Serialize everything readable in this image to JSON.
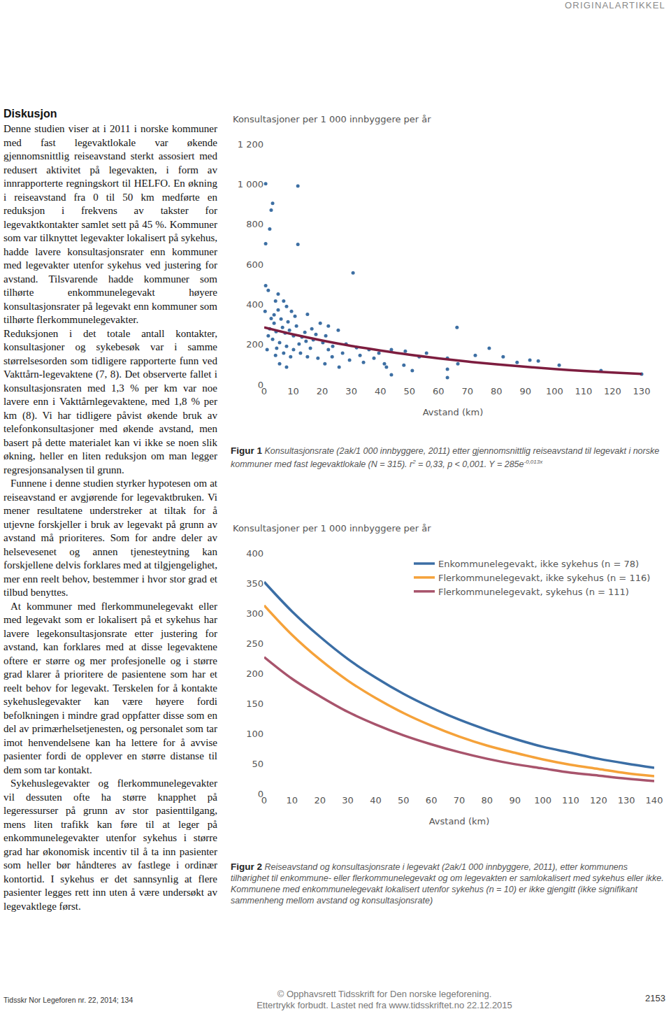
{
  "header": "ORIGINALARTIKKEL",
  "article": {
    "heading": "Diskusjon",
    "paragraphs": [
      "Denne studien viser at i 2011 i norske kommuner med fast legevaktlokale var økende gjennomsnittlig reiseavstand sterkt assosiert med redusert aktivitet på legevakten, i form av innrapporterte regningskort til HELFO. En økning i reiseavstand fra 0 til 50 km medførte en reduksjon i frekvens av takster for legevaktkontakter samlet sett på 45 %. Kommuner som var tilknyttet legevakter lokalisert på sykehus, hadde lavere konsultasjonsrater enn kommuner med legevakter utenfor sykehus ved justering for avstand. Tilsvarende hadde kommuner som tilhørte enkommunelegevakt høyere konsultasjonsrater på legevakt enn kommuner som tilhørte flerkommunelegevakter.",
      "Reduksjonen i det totale antall kontakter, konsultasjoner og sykebesøk var i samme størrelsesorden som tidligere rapporterte funn ved Vakttårn-legevaktene (7, 8). Det observerte fallet i konsultasjonsraten med 1,3 % per km var noe lavere enn i Vakttårnlegevaktene, med 1,8 % per km (8). Vi har tidligere påvist økende bruk av telefonkonsultasjoner med økende avstand, men basert på dette materialet kan vi ikke se noen slik økning, heller en liten reduksjon om man legger regresjonsanalysen til grunn.",
      "Funnene i denne studien styrker hypotesen om at reiseavstand er avgjørende for legevaktbruken. Vi mener resultatene understreker at tiltak for å utjevne forskjeller i bruk av legevakt på grunn av avstand må prioriteres. Som for andre deler av helsevesenet og annen tjenesteytning kan forskjellene delvis forklares med at tilgjengelighet, mer enn reelt behov, bestemmer i hvor stor grad et tilbud benyttes.",
      "At kommuner med flerkommunelegevakt eller med legevakt som er lokalisert på et sykehus har lavere legekonsultasjonsrate etter justering for avstand, kan forklares med at disse legevaktene oftere er større og mer profesjonelle og i større grad klarer å prioritere de pasientene som har et reelt behov for legevakt. Terskelen for å kontakte sykehuslegevakter kan være høyere fordi befolkningen i mindre grad oppfatter disse som en del av primærhelsetjenesten, og personalet som tar imot henvendelsene kan ha lettere for å avvise pasienter fordi de opplever en større distanse til dem som tar kontakt.",
      "Sykehuslegevakter og flerkommunelegevakter vil dessuten ofte ha større knapphet på legeressurser på grunn av stor pasienttilgang, mens liten trafikk kan føre til at leger på enkommunelegevakter utenfor sykehus i større grad har økonomisk incentiv til å ta inn pasienter som heller bør håndteres av fastlege i ordinær kontortid. I sykehus er det sannsynlig at flere pasienter legges rett inn uten å være undersøkt av legevaktlege først."
    ]
  },
  "chart_data": [
    {
      "type": "scatter",
      "ylabel": "Konsultasjoner per 1 000 innbyggere per år",
      "xlabel": "Avstand (km)",
      "xlim": [
        0,
        130
      ],
      "ylim": [
        0,
        1200
      ],
      "xticks": [
        0,
        10,
        20,
        30,
        40,
        50,
        60,
        70,
        80,
        90,
        100,
        110,
        120,
        130
      ],
      "yticks": [
        0,
        200,
        400,
        600,
        800,
        {
          "value": 1000,
          "label": "1 000"
        },
        {
          "value": 1200,
          "label": "1 200"
        }
      ],
      "grid": false,
      "series": [
        {
          "type": "scatter",
          "marker": "circle",
          "color": "#3d6fa3",
          "x": [
            0.5,
            11.6,
            2.9,
            2.4,
            1.9,
            0.5,
            11.6,
            30.6,
            0.5,
            3.9,
            7.7,
            4.8,
            9.4,
            3.4,
            10.6,
            14.9,
            5.8,
            19.3,
            22.1,
            16.4,
            25.5,
            66.4,
            4.1,
            7.2,
            10.1,
            13.0,
            16.9,
            20.2,
            23.6,
            28.2,
            31.8,
            36.1,
            39.5,
            43.8,
            48.6,
            55.9,
            2.9,
            5.3,
            7.7,
            10.1,
            12.5,
            14.9,
            18.5,
            23.4,
            29.4,
            34.2,
            41.4,
            48.1,
            53.4,
            63.1,
            72.7,
            82.3,
            87.1,
            94.4,
            101.6,
            63.1,
            51.0,
            42.1,
            5.3,
            7.7,
            1.0,
            1.9,
            3.4,
            6.3,
            8.7,
            11.1,
            14.0,
            17.8,
            21.2,
            4.3,
            6.7,
            9.1,
            12.0,
            14.4,
            22.1,
            27.0,
            33.0,
            37.8,
            130,
            63.1,
            43.8,
            25.8,
            20.9,
            15.9,
            77.5,
            66.7,
            91.5,
            116.0,
            1.4,
            4.8,
            6.7,
            2.4,
            8.2,
            1.4,
            3.9,
            0.3
          ],
          "values": [
            1002,
            991,
            904,
            870,
            776,
            703,
            699,
            557,
            494,
            417,
            390,
            372,
            365,
            348,
            341,
            351,
            327,
            306,
            292,
            278,
            271,
            285,
            264,
            257,
            243,
            237,
            223,
            209,
            191,
            202,
            184,
            174,
            157,
            174,
            167,
            157,
            226,
            209,
            191,
            174,
            157,
            139,
            132,
            139,
            122,
            111,
            104,
            97,
            139,
            132,
            146,
            139,
            111,
            118,
            97,
            77,
            70,
            87,
            104,
            87,
            174,
            278,
            306,
            285,
            271,
            292,
            261,
            250,
            243,
            181,
            157,
            139,
            202,
            216,
            174,
            157,
            146,
            132,
            52,
            35,
            49,
            87,
            104,
            181,
            181,
            104,
            122,
            70,
            470,
            452,
            417,
            330,
            313,
            243,
            146,
            365
          ]
        },
        {
          "type": "line",
          "line_style": "solid",
          "color": "#7d1d3f",
          "x": [
            0,
            10,
            20,
            30,
            40,
            50,
            60,
            70,
            80,
            90,
            100,
            110,
            120,
            130
          ],
          "values": [
            285,
            250,
            220,
            193,
            170,
            149,
            131,
            115,
            101,
            89,
            78,
            68,
            60,
            53
          ]
        }
      ]
    },
    {
      "type": "line",
      "ylabel": "Konsultasjoner per 1 000 innbyggere per år",
      "xlabel": "Avstand (km)",
      "xlim": [
        0,
        140
      ],
      "ylim": [
        0,
        400
      ],
      "xticks": [
        0,
        10,
        20,
        30,
        40,
        50,
        60,
        70,
        80,
        90,
        100,
        110,
        120,
        130,
        140
      ],
      "yticks": [
        0,
        50,
        100,
        150,
        200,
        250,
        300,
        350,
        400
      ],
      "grid": false,
      "legend": "top right",
      "x": [
        0,
        10,
        20,
        30,
        40,
        50,
        60,
        70,
        80,
        90,
        100,
        110,
        120,
        130,
        140
      ],
      "series": [
        {
          "name": "Enkommunelegevakt, ikke sykehus (n = 78)",
          "color": "#3b6ea5",
          "line_style": "solid",
          "values": [
            352,
            303,
            261,
            224,
            193,
            166,
            143,
            123,
            106,
            91,
            78,
            68,
            58,
            50,
            43
          ]
        },
        {
          "name": "Flerkommunelegevakt, ikke sykehus (n = 116)",
          "color": "#f5a23a",
          "line_style": "solid",
          "values": [
            313,
            264,
            223,
            188,
            159,
            134,
            113,
            95,
            80,
            68,
            57,
            48,
            41,
            34,
            29
          ]
        },
        {
          "name": "Flerkommunelegevakt, sykehus (n = 111)",
          "color": "#a8546c",
          "line_style": "solid",
          "values": [
            227,
            191,
            162,
            136,
            115,
            97,
            82,
            69,
            58,
            49,
            42,
            35,
            30,
            25,
            21
          ]
        }
      ]
    }
  ],
  "captions": [
    [
      {
        "text": "Figur 1",
        "bold": true
      },
      {
        "text": " Konsultasjonsrate (2ak/1 000 innbyggere, 2011) etter gjennomsnittlig reiseavstand til legevakt i norske kommuner med fast legevaktlokale (N = 315). r"
      },
      {
        "text": "2",
        "sup": true
      },
      {
        "text": " = 0,33, p < 0,001. Y = 285e"
      },
      {
        "text": "-0,013x",
        "sup": true
      }
    ],
    [
      {
        "text": "Figur 2",
        "bold": true
      },
      {
        "text": " Reiseavstand og konsultasjonsrate i legevakt (2ak/1 000 innbyggere, 2011), etter kommunens tilhørighet til enkommune- eller flerkommunelegevakt og om legevakten er samlokalisert med sykehus eller ikke. Kommunene med enkommunelegevakt lokalisert utenfor sykehus (n = 10) er ikke gjengitt (ikke signifikant sammenheng mellom avstand og konsultasjonsrate)"
      }
    ]
  ],
  "footer": {
    "left": "Tidsskr Nor Legeforen nr. 22, 2014; 134",
    "center": [
      "© Opphavsrett Tidsskrift for Den norske legeforening.",
      "Ettertrykk forbudt. Lastet ned fra www.tidsskriftet.no 22.12.2015"
    ],
    "page": "2153"
  }
}
